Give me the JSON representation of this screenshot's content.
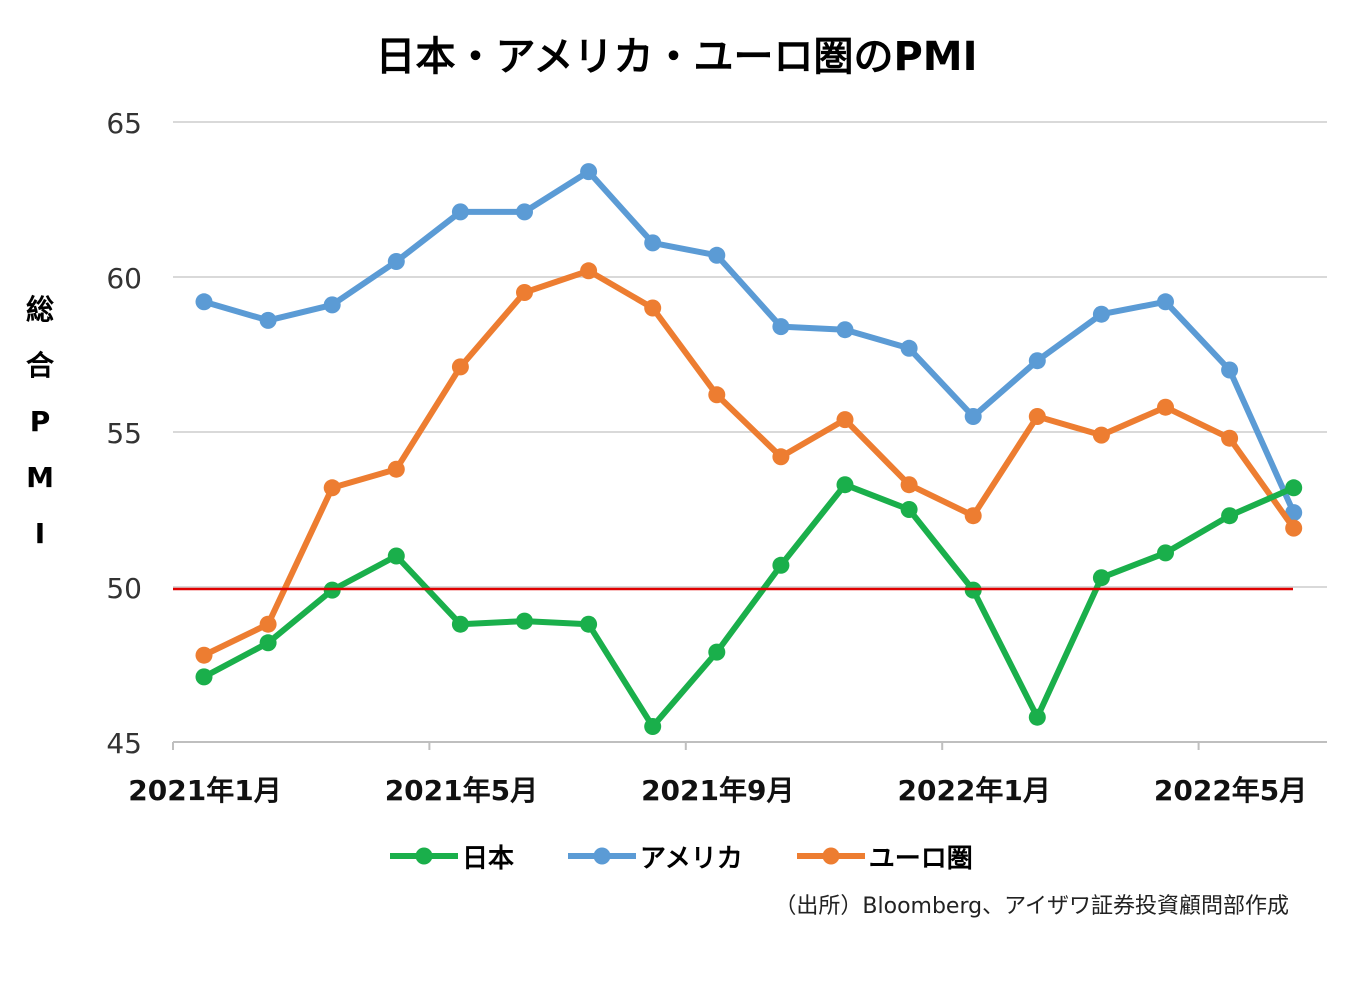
{
  "chart_data": {
    "type": "line",
    "title": "日本・アメリカ・ユーロ圏のPMI",
    "ylabel": "総合PMI",
    "xlabel": "",
    "ylim": [
      45,
      65
    ],
    "yticks": [
      45,
      50,
      55,
      60,
      65
    ],
    "x": [
      "2021年1月",
      "2021年2月",
      "2021年3月",
      "2021年4月",
      "2021年5月",
      "2021年6月",
      "2021年7月",
      "2021年8月",
      "2021年9月",
      "2021年10月",
      "2021年11月",
      "2021年12月",
      "2022年1月",
      "2022年2月",
      "2022年3月",
      "2022年4月",
      "2022年5月",
      "2022年6月"
    ],
    "xtick_labels": [
      {
        "index": 0,
        "label": "2021年1月"
      },
      {
        "index": 4,
        "label": "2021年5月"
      },
      {
        "index": 8,
        "label": "2021年9月"
      },
      {
        "index": 12,
        "label": "2022年1月"
      },
      {
        "index": 16,
        "label": "2022年5月"
      }
    ],
    "series": [
      {
        "name": "日本",
        "color": "#1aaf4b",
        "values": [
          47.1,
          48.2,
          49.9,
          51.0,
          48.8,
          48.9,
          48.8,
          45.5,
          47.9,
          50.7,
          53.3,
          52.5,
          49.9,
          45.8,
          50.3,
          51.1,
          52.3,
          53.2
        ]
      },
      {
        "name": "アメリカ",
        "color": "#5b9bd5",
        "values": [
          59.2,
          58.6,
          59.1,
          60.5,
          62.1,
          62.1,
          63.4,
          61.1,
          60.7,
          58.4,
          58.3,
          57.7,
          55.5,
          57.3,
          58.8,
          59.2,
          57.0,
          52.4
        ]
      },
      {
        "name": "ユーロ圏",
        "color": "#ed7d31",
        "values": [
          47.8,
          48.8,
          53.2,
          53.8,
          57.1,
          59.5,
          60.2,
          59.0,
          56.2,
          54.2,
          55.4,
          53.3,
          52.3,
          55.5,
          54.9,
          55.8,
          54.8,
          51.9
        ]
      }
    ],
    "reference_line": {
      "value": 50,
      "color": "#e00000"
    },
    "grid": true,
    "legend": "bottom"
  },
  "source_note": "（出所）Bloomberg、アイザワ証券投資顧問部作成"
}
